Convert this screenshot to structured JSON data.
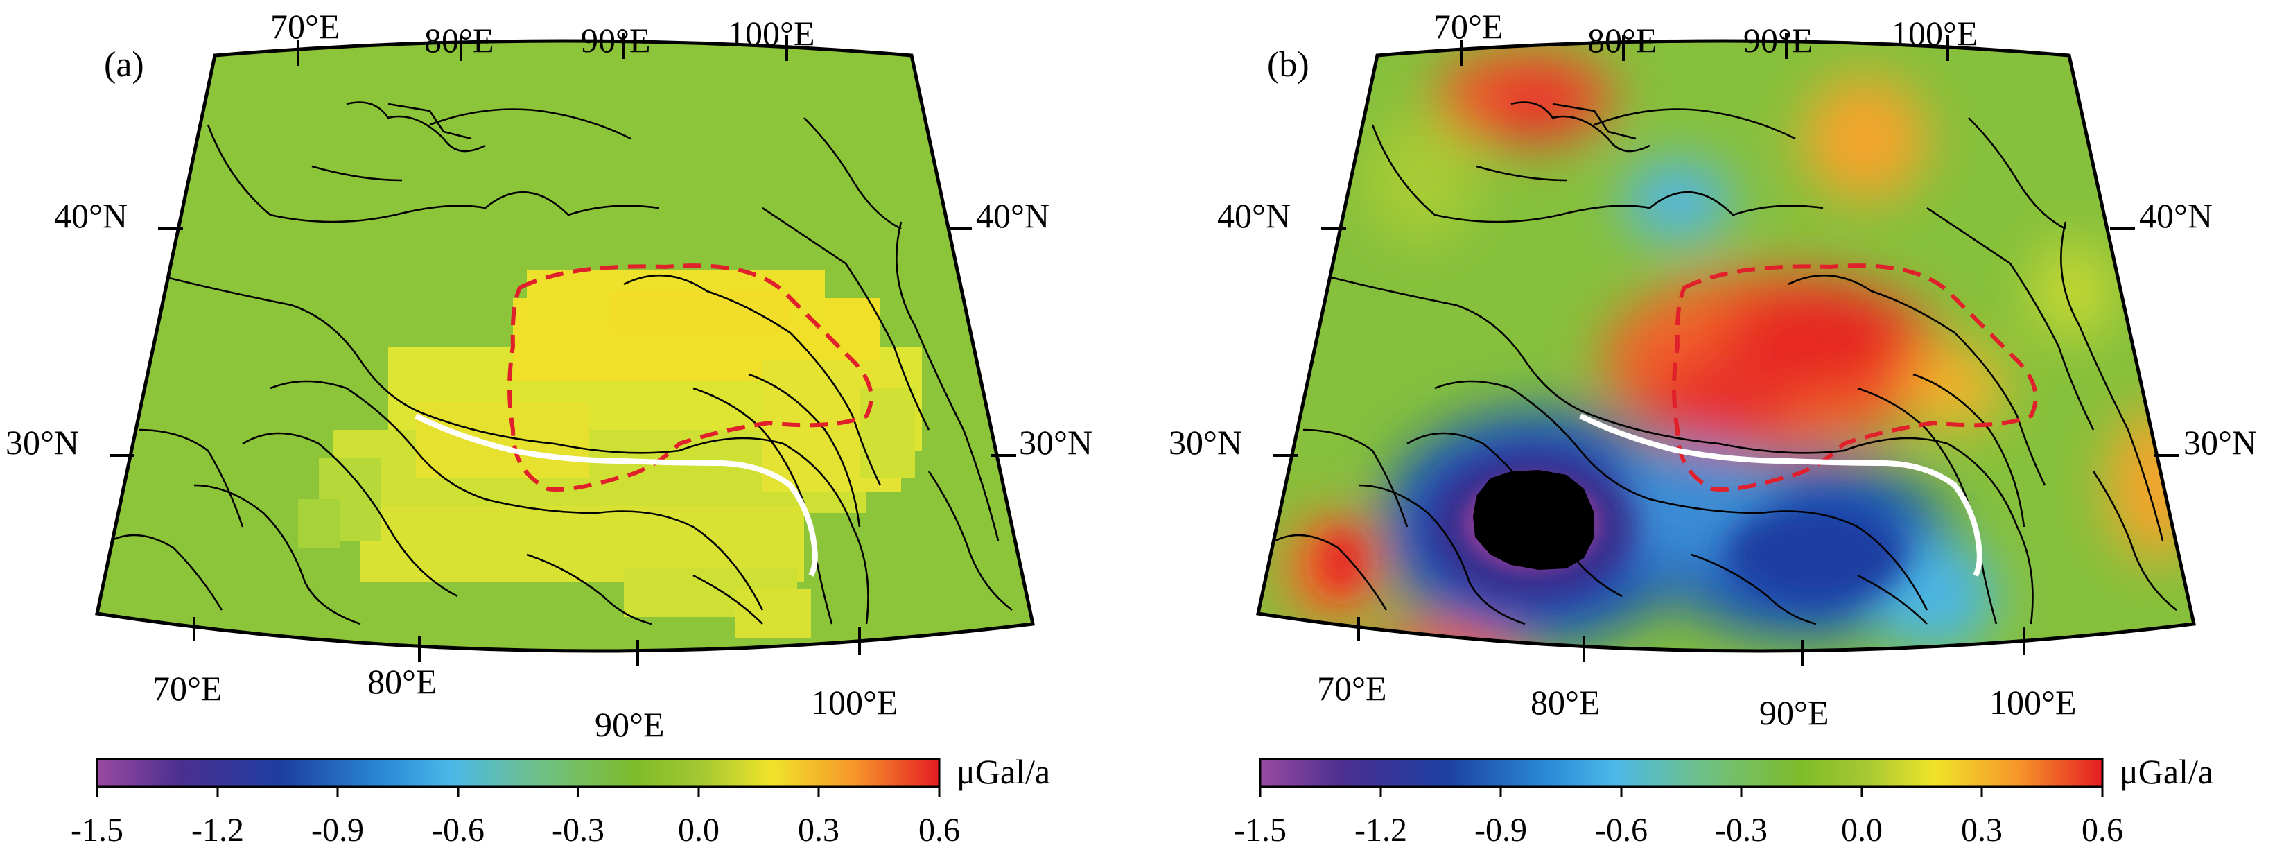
{
  "panels": [
    {
      "id": "a",
      "label": "(a)",
      "lon_top": [
        "70°E",
        "80°E",
        "90°E",
        "100°E"
      ],
      "lon_bottom": [
        "70°E",
        "80°E",
        "90°E",
        "100°E"
      ],
      "lat_left": [
        "40°N",
        "30°N"
      ],
      "lat_right": [
        "40°N",
        "30°N"
      ],
      "colorbar": {
        "ticks": [
          "-1.5",
          "-1.2",
          "-0.9",
          "-0.6",
          "-0.3",
          "0.0",
          "0.3",
          "0.6"
        ],
        "unit": "μGal/a",
        "range": [
          -1.5,
          0.6
        ]
      }
    },
    {
      "id": "b",
      "label": "(b)",
      "lon_top": [
        "70°E",
        "80°E",
        "90°E",
        "100°E"
      ],
      "lon_bottom": [
        "70°E",
        "80°E",
        "90°E",
        "100°E"
      ],
      "lat_left": [
        "40°N",
        "30°N"
      ],
      "lat_right": [
        "40°N",
        "30°N"
      ],
      "colorbar": {
        "ticks": [
          "-1.5",
          "-1.2",
          "-0.9",
          "-0.6",
          "-0.3",
          "0.0",
          "0.3",
          "0.6"
        ],
        "unit": "μGal/a",
        "range": [
          -1.5,
          0.6
        ]
      }
    }
  ],
  "colormap": [
    "#8e3d96",
    "#3a2c8c",
    "#1c4aa8",
    "#2aa8e0",
    "#78c38a",
    "#80bc2a",
    "#9cc83a",
    "#f2e62a",
    "#f8a52c",
    "#e62224"
  ],
  "colors": {
    "background_a": "#8cc43a",
    "anomaly_a": "#f0e02a",
    "background_b": "#86c03c",
    "positive_b": "#ee4a24",
    "negative_b": "#1f4fb0",
    "core_b": "#000000",
    "dashed_outline": "#e0202a",
    "white_line": "#ffffff"
  }
}
